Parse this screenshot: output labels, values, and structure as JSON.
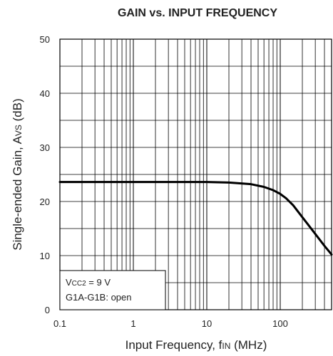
{
  "chart_data": {
    "type": "line",
    "title": "GAIN vs. INPUT FREQUENCY",
    "xlabel": {
      "main": "Input Frequency, f",
      "sub": "IN",
      "unit": " (MHz)"
    },
    "ylabel": {
      "main": "Single-ended Gain, A",
      "sub": "VS",
      "unit": " (dB)"
    },
    "x_scale": "log",
    "xlim": [
      0.1,
      500
    ],
    "ylim": [
      0,
      50
    ],
    "x_ticks": [
      {
        "value": 0.1,
        "label": "0.1"
      },
      {
        "value": 1,
        "label": "1"
      },
      {
        "value": 10,
        "label": "10"
      },
      {
        "value": 100,
        "label": "100"
      }
    ],
    "y_ticks": [
      {
        "value": 0,
        "label": "0"
      },
      {
        "value": 10,
        "label": "10"
      },
      {
        "value": 20,
        "label": "20"
      },
      {
        "value": 30,
        "label": "30"
      },
      {
        "value": 40,
        "label": "40"
      },
      {
        "value": 50,
        "label": "50"
      }
    ],
    "y_minor_step": 5,
    "grid": true,
    "series": [
      {
        "x": [
          0.1,
          1,
          5,
          10,
          20,
          40,
          60,
          80,
          100,
          120,
          150,
          180,
          200,
          250,
          300,
          400,
          500
        ],
        "y": [
          23.6,
          23.6,
          23.6,
          23.6,
          23.5,
          23.2,
          22.7,
          22.1,
          21.4,
          20.6,
          19.3,
          17.9,
          17.1,
          15.4,
          14.0,
          11.8,
          10.2
        ]
      }
    ],
    "legend": {
      "position": "bottom-left",
      "lines": [
        {
          "main": "V",
          "sub": "CC2",
          "rest": " = 9 V"
        },
        {
          "main": "G1A-G1B: open",
          "sub": "",
          "rest": ""
        }
      ]
    }
  }
}
